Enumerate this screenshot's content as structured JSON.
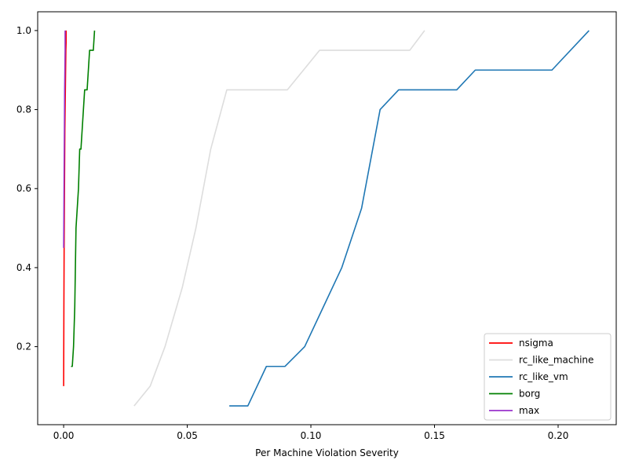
{
  "chart_data": {
    "type": "line",
    "title": "",
    "xlabel": "Per Machine Violation Severity",
    "ylabel": "",
    "xlim": [
      -0.0105,
      0.2235
    ],
    "ylim": [
      0.0025,
      1.0475
    ],
    "xticks": [
      0.0,
      0.05,
      0.1,
      0.15,
      0.2
    ],
    "xtick_labels": [
      "0.00",
      "0.05",
      "0.10",
      "0.15",
      "0.20"
    ],
    "yticks": [
      0.2,
      0.4,
      0.6,
      0.8,
      1.0
    ],
    "ytick_labels": [
      "0.2",
      "0.4",
      "0.6",
      "0.8",
      "1.0"
    ],
    "grid": false,
    "legend_position": "lower-right",
    "series": [
      {
        "name": "nsigma",
        "color": "#ff0000",
        "x": [
          0.0,
          0.0001,
          0.0002,
          0.0003,
          0.0004,
          0.0005,
          0.0006,
          0.0007,
          0.0008,
          0.0009,
          0.001,
          0.001
        ],
        "y": [
          0.1,
          0.3,
          0.45,
          0.55,
          0.65,
          0.75,
          0.8,
          0.85,
          0.9,
          0.95,
          0.97,
          1.0
        ]
      },
      {
        "name": "rc_like_machine",
        "color": "#dddddd",
        "x": [
          0.0285,
          0.035,
          0.041,
          0.048,
          0.0535,
          0.0595,
          0.066,
          0.073,
          0.0905,
          0.1035,
          0.111,
          0.14,
          0.146
        ],
        "y": [
          0.05,
          0.1,
          0.2,
          0.35,
          0.5,
          0.7,
          0.85,
          0.85,
          0.85,
          0.95,
          0.95,
          0.95,
          1.0
        ]
      },
      {
        "name": "rc_like_vm",
        "color": "#1f77b4",
        "x": [
          0.067,
          0.0745,
          0.082,
          0.0895,
          0.0975,
          0.105,
          0.1125,
          0.1205,
          0.128,
          0.1355,
          0.159,
          0.1665,
          0.1975,
          0.2125
        ],
        "y": [
          0.05,
          0.05,
          0.15,
          0.15,
          0.2,
          0.3,
          0.4,
          0.55,
          0.8,
          0.85,
          0.85,
          0.9,
          0.9,
          1.0
        ]
      },
      {
        "name": "borg",
        "color": "#008000",
        "x": [
          0.003,
          0.0035,
          0.004,
          0.0045,
          0.005,
          0.006,
          0.0065,
          0.007,
          0.0085,
          0.0095,
          0.0105,
          0.012,
          0.0125
        ],
        "y": [
          0.15,
          0.15,
          0.2,
          0.3,
          0.5,
          0.6,
          0.7,
          0.7,
          0.85,
          0.85,
          0.95,
          0.95,
          1.0
        ]
      },
      {
        "name": "max",
        "color": "#9932cc",
        "x": [
          0.0,
          0.0001,
          0.0002,
          0.0003,
          0.0004,
          0.0005,
          0.0006,
          0.0006
        ],
        "y": [
          0.45,
          0.55,
          0.65,
          0.75,
          0.85,
          0.9,
          0.95,
          1.0
        ]
      }
    ]
  }
}
